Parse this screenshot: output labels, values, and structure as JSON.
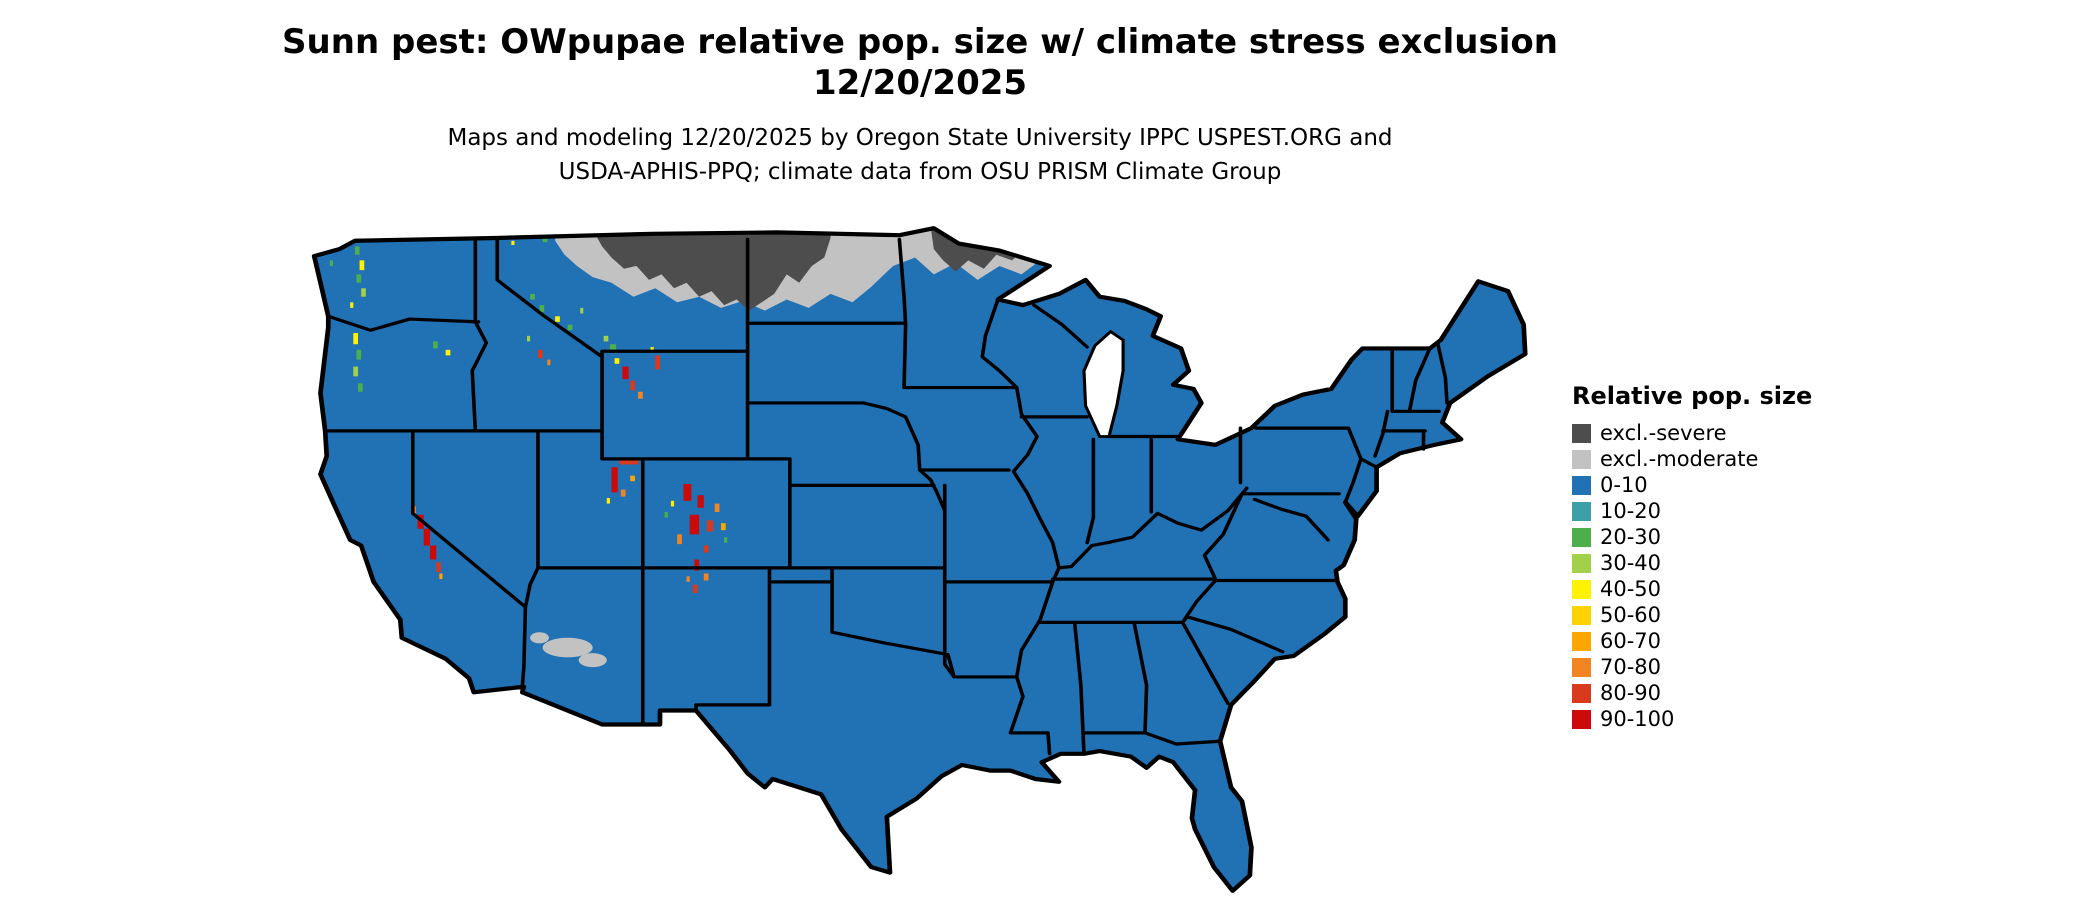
{
  "title": {
    "line1": "Sunn pest: OWpupae relative pop. size w/ climate stress exclusion",
    "line2": "12/20/2025"
  },
  "subtitle": {
    "line1": "Maps and modeling 12/20/2025 by Oregon State University IPPC USPEST.ORG and",
    "line2": "USDA-APHIS-PPQ; climate data from OSU PRISM Climate Group"
  },
  "map": {
    "name": "contiguous-united-states-choropleth",
    "base_color": "#2171B5",
    "border_color": "#000000",
    "background": "#FFFFFF"
  },
  "legend": {
    "title": "Relative pop. size",
    "items": [
      {
        "label": "excl.-severe",
        "color": "#4D4D4D"
      },
      {
        "label": "excl.-moderate",
        "color": "#C2C2C2"
      },
      {
        "label": "0-10",
        "color": "#2171B5"
      },
      {
        "label": "10-20",
        "color": "#3D9FA8"
      },
      {
        "label": "20-30",
        "color": "#4DAF4A"
      },
      {
        "label": "30-40",
        "color": "#A2D049"
      },
      {
        "label": "40-50",
        "color": "#FFF200"
      },
      {
        "label": "50-60",
        "color": "#FFD300"
      },
      {
        "label": "60-70",
        "color": "#FFA500"
      },
      {
        "label": "70-80",
        "color": "#F28522"
      },
      {
        "label": "80-90",
        "color": "#D93A1E"
      },
      {
        "label": "90-100",
        "color": "#CC0A0A"
      }
    ]
  }
}
